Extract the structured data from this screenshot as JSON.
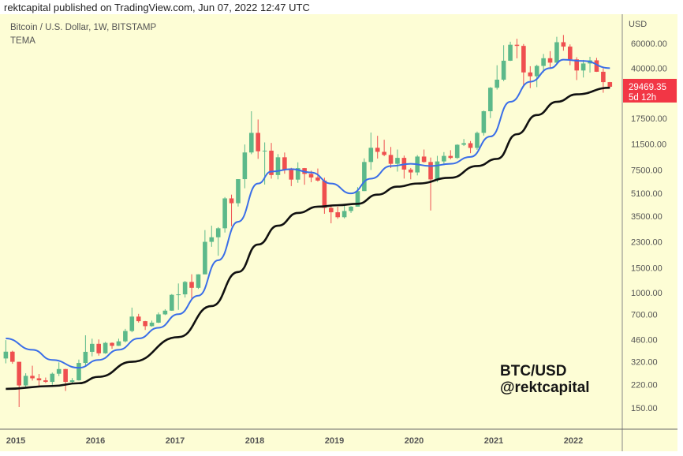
{
  "header": {
    "published": "rektcapital published on TradingView.com, Jun 07, 2022 12:47 UTC"
  },
  "legend": {
    "symbol": "Bitcoin / U.S. Dollar, 1W, BITSTAMP",
    "indicator": "TEMA"
  },
  "watermark": {
    "line1": "BTC/USD",
    "line2": "@rektcapital"
  },
  "price_label": {
    "price": "29469.35",
    "countdown": "5d 12h",
    "color": "#f23645"
  },
  "chart_data": {
    "type": "candlestick",
    "title": "Bitcoin / U.S. Dollar, 1W, BITSTAMP",
    "y_scale": "log",
    "y_unit": "USD",
    "ylim": [
      120,
      75000
    ],
    "y_ticks": [
      "60000.00",
      "40000.00",
      "17500.00",
      "11500.00",
      "7500.00",
      "5100.00",
      "3500.00",
      "2300.00",
      "1500.00",
      "1000.00",
      "700.00",
      "460.00",
      "320.00",
      "220.00",
      "150.00"
    ],
    "x_ticks": [
      "2015",
      "2016",
      "2017",
      "2018",
      "2019",
      "2020",
      "2021",
      "2022"
    ],
    "grid": false,
    "colors": {
      "up": "#5cb98a",
      "down": "#ef4f4f",
      "tema_fast": "#3a6ee8",
      "tema_slow": "#111111",
      "background": "#fdfdd5"
    },
    "candles": [
      [
        "2014-11",
        338,
        457,
        312,
        378
      ],
      [
        "2014-12",
        378,
        384,
        310,
        320
      ],
      [
        "2015-01",
        320,
        320,
        152,
        217
      ],
      [
        "2015-02",
        217,
        265,
        212,
        254
      ],
      [
        "2015-03",
        254,
        300,
        235,
        244
      ],
      [
        "2015-04",
        244,
        262,
        214,
        236
      ],
      [
        "2015-05",
        236,
        247,
        226,
        230
      ],
      [
        "2015-06",
        230,
        268,
        219,
        263
      ],
      [
        "2015-07",
        263,
        317,
        253,
        284
      ],
      [
        "2015-08",
        284,
        285,
        198,
        230
      ],
      [
        "2015-09",
        230,
        245,
        225,
        236
      ],
      [
        "2015-10",
        236,
        332,
        235,
        314
      ],
      [
        "2015-11",
        314,
        495,
        300,
        377
      ],
      [
        "2015-12",
        377,
        468,
        350,
        430
      ],
      [
        "2016-01",
        430,
        462,
        354,
        368
      ],
      [
        "2016-02",
        368,
        444,
        365,
        437
      ],
      [
        "2016-03",
        437,
        440,
        396,
        416
      ],
      [
        "2016-04",
        416,
        468,
        415,
        448
      ],
      [
        "2016-05",
        448,
        550,
        440,
        531
      ],
      [
        "2016-06",
        531,
        780,
        520,
        673
      ],
      [
        "2016-07",
        673,
        704,
        610,
        624
      ],
      [
        "2016-08",
        624,
        627,
        540,
        575
      ],
      [
        "2016-09",
        575,
        630,
        570,
        609
      ],
      [
        "2016-10",
        609,
        720,
        605,
        698
      ],
      [
        "2016-11",
        698,
        760,
        690,
        742
      ],
      [
        "2016-12",
        742,
        975,
        740,
        963
      ],
      [
        "2017-01",
        963,
        1160,
        752,
        970
      ],
      [
        "2017-02",
        970,
        1210,
        920,
        1190
      ],
      [
        "2017-03",
        1190,
        1350,
        890,
        1080
      ],
      [
        "2017-04",
        1080,
        1350,
        1060,
        1348
      ],
      [
        "2017-05",
        1348,
        2790,
        1350,
        2300
      ],
      [
        "2017-06",
        2300,
        3000,
        2120,
        2480
      ],
      [
        "2017-07",
        2480,
        2930,
        1830,
        2875
      ],
      [
        "2017-08",
        2875,
        4800,
        2680,
        4700
      ],
      [
        "2017-09",
        4700,
        5000,
        2970,
        4340
      ],
      [
        "2017-10",
        4340,
        6450,
        4110,
        6450
      ],
      [
        "2017-11",
        6450,
        11400,
        5550,
        10000
      ],
      [
        "2017-12",
        10000,
        19700,
        9720,
        13800
      ],
      [
        "2018-01",
        13800,
        17200,
        9000,
        10200
      ],
      [
        "2018-02",
        10200,
        11800,
        5900,
        10300
      ],
      [
        "2018-03",
        10300,
        11700,
        6500,
        6900
      ],
      [
        "2018-04",
        6900,
        9740,
        6430,
        9240
      ],
      [
        "2018-05",
        9240,
        9990,
        7050,
        7500
      ],
      [
        "2018-06",
        7500,
        7770,
        5750,
        6400
      ],
      [
        "2018-07",
        6400,
        8500,
        6070,
        7730
      ],
      [
        "2018-08",
        7730,
        7750,
        5880,
        7030
      ],
      [
        "2018-09",
        7030,
        7410,
        6130,
        6630
      ],
      [
        "2018-10",
        6630,
        7680,
        6200,
        6300
      ],
      [
        "2018-11",
        6300,
        6600,
        3650,
        4020
      ],
      [
        "2018-12",
        4020,
        4250,
        3120,
        3740
      ],
      [
        "2019-01",
        3740,
        4100,
        3360,
        3450
      ],
      [
        "2019-02",
        3450,
        4200,
        3380,
        3820
      ],
      [
        "2019-03",
        3820,
        4140,
        3700,
        4100
      ],
      [
        "2019-04",
        4100,
        5650,
        4100,
        5300
      ],
      [
        "2019-05",
        5300,
        9080,
        5300,
        8550
      ],
      [
        "2019-06",
        8550,
        13880,
        7500,
        10800
      ],
      [
        "2019-07",
        10800,
        13150,
        9050,
        10100
      ],
      [
        "2019-08",
        10100,
        12330,
        9400,
        9600
      ],
      [
        "2019-09",
        9600,
        10950,
        7740,
        8300
      ],
      [
        "2019-10",
        8300,
        10500,
        7300,
        9150
      ],
      [
        "2019-11",
        9150,
        9500,
        6510,
        7550
      ],
      [
        "2019-12",
        7550,
        7750,
        6430,
        7200
      ],
      [
        "2020-01",
        7200,
        9580,
        6860,
        9350
      ],
      [
        "2020-02",
        9350,
        10500,
        8450,
        8550
      ],
      [
        "2020-03",
        8550,
        9200,
        3850,
        6420
      ],
      [
        "2020-04",
        6420,
        9460,
        6150,
        8630
      ],
      [
        "2020-05",
        8630,
        10060,
        8110,
        9450
      ],
      [
        "2020-06",
        9450,
        10380,
        8930,
        9140
      ],
      [
        "2020-07",
        9140,
        11450,
        8990,
        11350
      ],
      [
        "2020-08",
        11350,
        12480,
        11120,
        11650
      ],
      [
        "2020-09",
        11650,
        12070,
        9880,
        10780
      ],
      [
        "2020-10",
        10780,
        14100,
        10430,
        13800
      ],
      [
        "2020-11",
        13800,
        19900,
        13200,
        19700
      ],
      [
        "2020-12",
        19700,
        29300,
        17600,
        28990
      ],
      [
        "2021-01",
        28990,
        41950,
        28130,
        33100
      ],
      [
        "2021-02",
        33100,
        58350,
        32300,
        45200
      ],
      [
        "2021-03",
        45200,
        61780,
        45000,
        58800
      ],
      [
        "2021-04",
        58800,
        64850,
        47000,
        57700
      ],
      [
        "2021-05",
        57700,
        59500,
        30000,
        37300
      ],
      [
        "2021-06",
        37300,
        41300,
        28800,
        35000
      ],
      [
        "2021-07",
        35000,
        42300,
        29300,
        41500
      ],
      [
        "2021-08",
        41500,
        50500,
        37330,
        47100
      ],
      [
        "2021-09",
        47100,
        52900,
        39600,
        43800
      ],
      [
        "2021-10",
        43800,
        67000,
        43300,
        61300
      ],
      [
        "2021-11",
        61300,
        69000,
        53300,
        57000
      ],
      [
        "2021-12",
        57000,
        59100,
        42000,
        46200
      ],
      [
        "2022-01",
        46200,
        47900,
        32900,
        38500
      ],
      [
        "2022-02",
        38500,
        45800,
        34300,
        43200
      ],
      [
        "2022-03",
        43200,
        48200,
        37200,
        45500
      ],
      [
        "2022-04",
        45500,
        47400,
        37600,
        37700
      ],
      [
        "2022-05",
        37700,
        39900,
        26700,
        31800
      ],
      [
        "2022-06",
        31800,
        31900,
        29200,
        29469.35
      ]
    ],
    "series": [
      {
        "values": [
          [
            "2014-11",
            470
          ],
          [
            "2015-03",
            390
          ],
          [
            "2015-06",
            330
          ],
          [
            "2015-10",
            290
          ],
          [
            "2016-01",
            330
          ],
          [
            "2016-04",
            390
          ],
          [
            "2016-07",
            470
          ],
          [
            "2016-10",
            560
          ],
          [
            "2017-01",
            700
          ],
          [
            "2017-04",
            950
          ],
          [
            "2017-07",
            1700
          ],
          [
            "2017-10",
            3200
          ],
          [
            "2018-01",
            6000
          ],
          [
            "2018-03",
            7300
          ],
          [
            "2018-06",
            7600
          ],
          [
            "2018-09",
            7200
          ],
          [
            "2018-12",
            6000
          ],
          [
            "2019-03",
            5100
          ],
          [
            "2019-06",
            6500
          ],
          [
            "2019-09",
            8000
          ],
          [
            "2019-12",
            8300
          ],
          [
            "2020-03",
            8000
          ],
          [
            "2020-06",
            8300
          ],
          [
            "2020-09",
            9300
          ],
          [
            "2020-12",
            13000
          ],
          [
            "2021-03",
            23000
          ],
          [
            "2021-06",
            32000
          ],
          [
            "2021-09",
            40000
          ],
          [
            "2021-11",
            46000
          ],
          [
            "2022-02",
            45000
          ],
          [
            "2022-06",
            40000
          ]
        ]
      },
      {
        "values": [
          [
            "2014-11",
            205
          ],
          [
            "2015-06",
            215
          ],
          [
            "2015-10",
            225
          ],
          [
            "2016-01",
            250
          ],
          [
            "2016-06",
            320
          ],
          [
            "2017-01",
            480
          ],
          [
            "2017-06",
            800
          ],
          [
            "2017-10",
            1400
          ],
          [
            "2018-01",
            2200
          ],
          [
            "2018-04",
            3000
          ],
          [
            "2018-07",
            3700
          ],
          [
            "2018-10",
            4100
          ],
          [
            "2019-01",
            4200
          ],
          [
            "2019-04",
            4300
          ],
          [
            "2019-07",
            5000
          ],
          [
            "2019-10",
            5700
          ],
          [
            "2020-01",
            6000
          ],
          [
            "2020-06",
            6600
          ],
          [
            "2020-10",
            8000
          ],
          [
            "2021-01",
            9000
          ],
          [
            "2021-04",
            13500
          ],
          [
            "2021-07",
            18500
          ],
          [
            "2021-10",
            23000
          ],
          [
            "2022-01",
            26000
          ],
          [
            "2022-06",
            29000
          ]
        ]
      }
    ]
  }
}
